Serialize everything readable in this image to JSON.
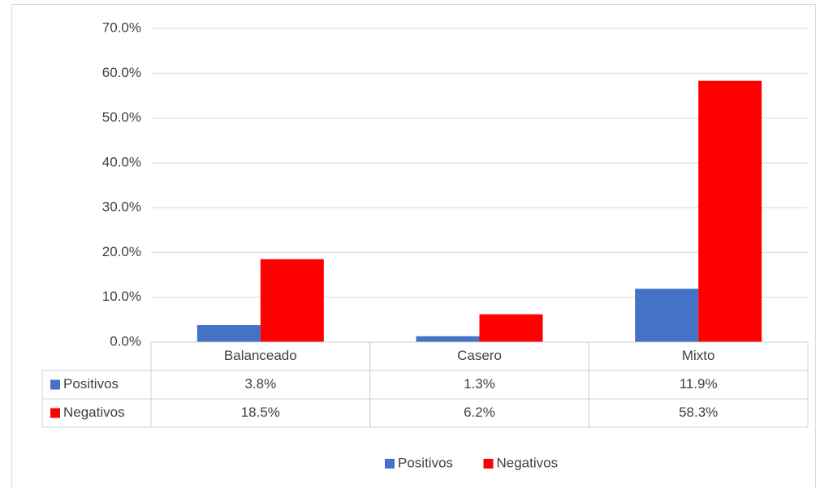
{
  "chart_data": {
    "type": "bar",
    "categories": [
      "Balanceado",
      "Casero",
      "Mixto"
    ],
    "series": [
      {
        "name": "Positivos",
        "color": "#4472c4",
        "values": [
          3.8,
          1.3,
          11.9
        ],
        "value_labels": [
          "3.8%",
          "1.3%",
          "11.9%"
        ]
      },
      {
        "name": "Negativos",
        "color": "#ff0000",
        "values": [
          18.5,
          6.2,
          58.3
        ],
        "value_labels": [
          "18.5%",
          "6.2%",
          "58.3%"
        ]
      }
    ],
    "ylim": [
      0,
      70
    ],
    "yticks": [
      {
        "value": 0,
        "label": "0.0%"
      },
      {
        "value": 10,
        "label": "10.0%"
      },
      {
        "value": 20,
        "label": "20.0%"
      },
      {
        "value": 30,
        "label": "30.0%"
      },
      {
        "value": 40,
        "label": "40.0%"
      },
      {
        "value": 50,
        "label": "50.0%"
      },
      {
        "value": 60,
        "label": "60.0%"
      },
      {
        "value": 70,
        "label": "70.0%"
      }
    ],
    "grid": true,
    "legend": "bottom",
    "data_table": true
  }
}
